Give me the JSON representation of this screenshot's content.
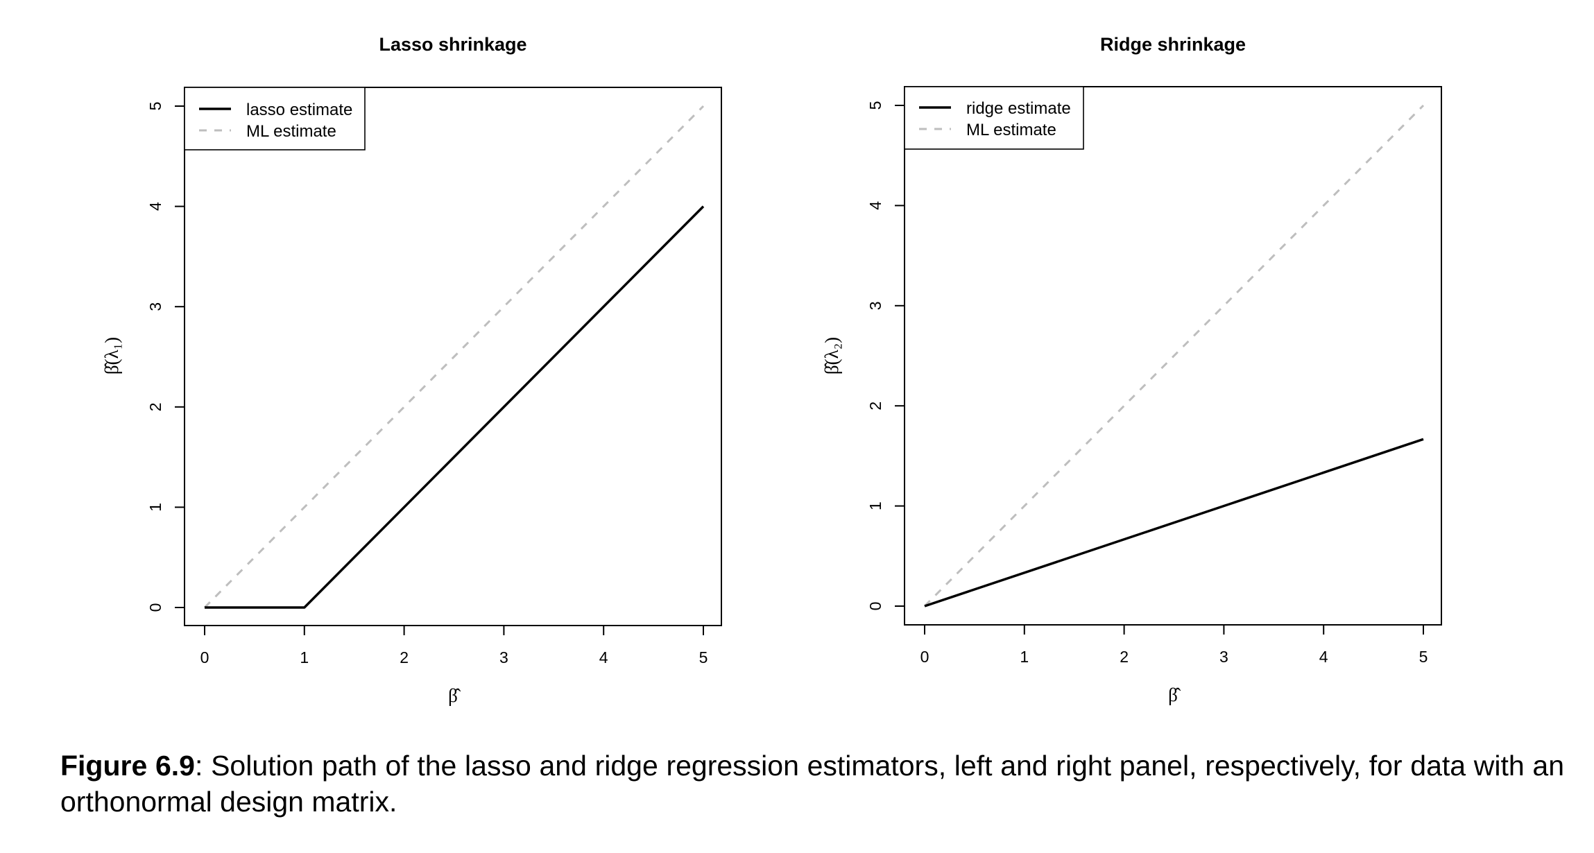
{
  "chart_data": [
    {
      "type": "line",
      "title": "Lasso shrinkage",
      "xlabel": "β̂",
      "ylabel": "β̂(λ₁)",
      "xlim": [
        0,
        5
      ],
      "ylim": [
        0,
        5
      ],
      "xticks": [
        "0",
        "1",
        "2",
        "3",
        "4",
        "5"
      ],
      "yticks": [
        "0",
        "1",
        "2",
        "3",
        "4",
        "5"
      ],
      "legend_position": "top-left",
      "series": [
        {
          "name": "lasso estimate",
          "style": "solid",
          "color": "#000000",
          "x": [
            0,
            1,
            5
          ],
          "y": [
            0,
            0,
            4
          ]
        },
        {
          "name": "ML estimate",
          "style": "dashed",
          "color": "#bebebe",
          "x": [
            0,
            5
          ],
          "y": [
            0,
            5
          ]
        }
      ]
    },
    {
      "type": "line",
      "title": "Ridge shrinkage",
      "xlabel": "β̂",
      "ylabel": "β̂(λ₂)",
      "xlim": [
        0,
        5
      ],
      "ylim": [
        0,
        5
      ],
      "xticks": [
        "0",
        "1",
        "2",
        "3",
        "4",
        "5"
      ],
      "yticks": [
        "0",
        "1",
        "2",
        "3",
        "4",
        "5"
      ],
      "legend_position": "top-left",
      "series": [
        {
          "name": "ridge estimate",
          "style": "solid",
          "color": "#000000",
          "x": [
            0,
            5
          ],
          "y": [
            0,
            1.667
          ]
        },
        {
          "name": "ML estimate",
          "style": "dashed",
          "color": "#bebebe",
          "x": [
            0,
            5
          ],
          "y": [
            0,
            5
          ]
        }
      ]
    }
  ],
  "caption": {
    "label": "Figure 6.9",
    "text": ": Solution path of the lasso and ridge regression estimators, left and right panel, respectively, for data with an orthonormal design matrix."
  }
}
